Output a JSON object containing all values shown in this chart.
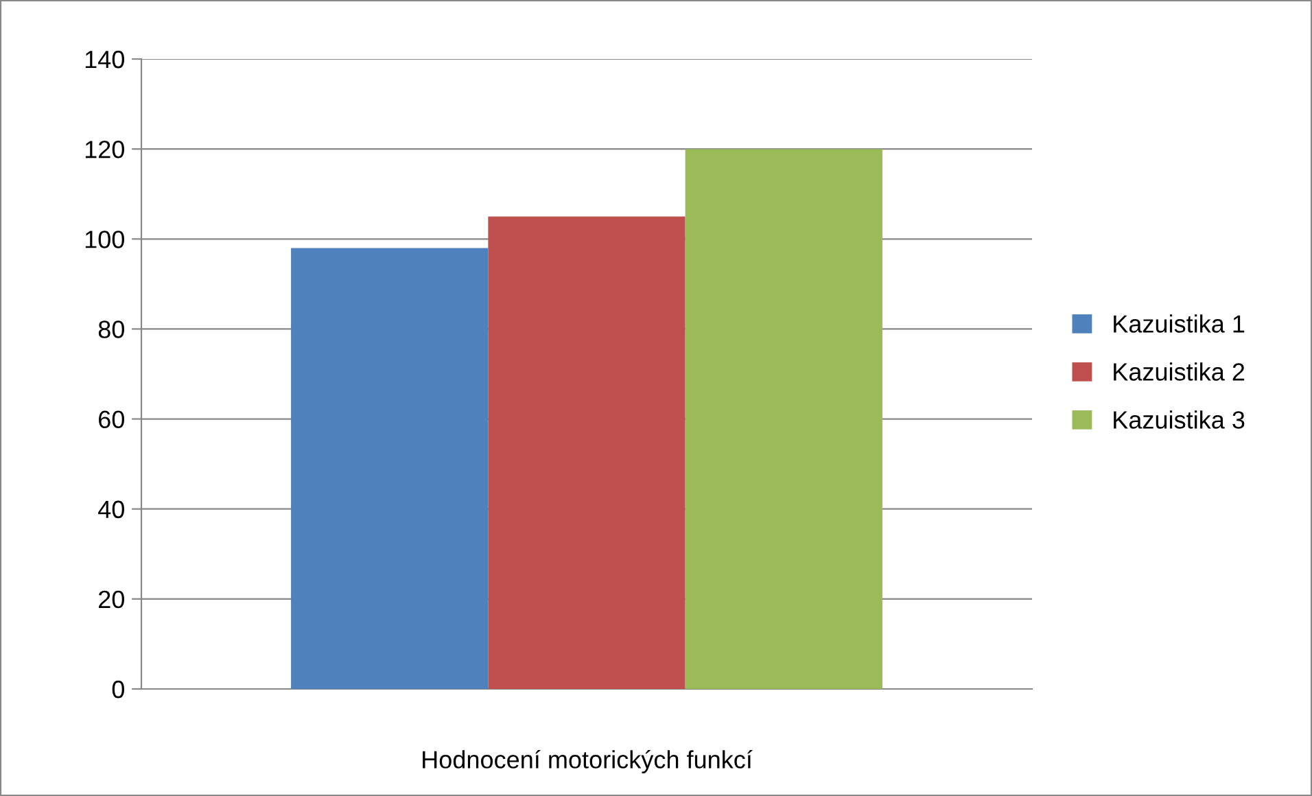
{
  "chart_data": {
    "type": "bar",
    "categories": [
      "Hodnocení motorických funkcí"
    ],
    "series": [
      {
        "name": "Kazuistika 1",
        "color": "#4f81bd",
        "values": [
          98
        ]
      },
      {
        "name": "Kazuistika 2",
        "color": "#c0504d",
        "values": [
          105
        ]
      },
      {
        "name": "Kazuistika 3",
        "color": "#9bbb59",
        "values": [
          120
        ]
      }
    ],
    "ylim": [
      0,
      140
    ],
    "yticks": [
      0,
      20,
      40,
      60,
      80,
      100,
      120,
      140
    ],
    "grid": "y",
    "legend": "right"
  }
}
